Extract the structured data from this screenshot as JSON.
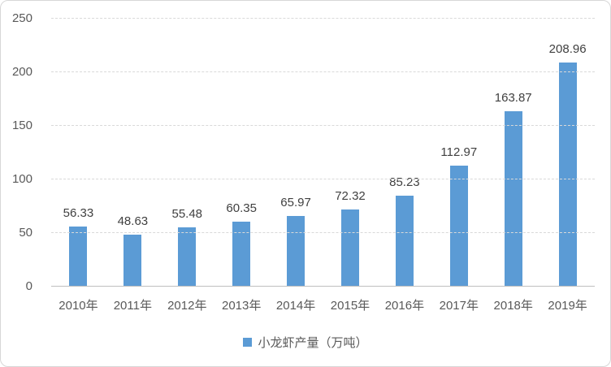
{
  "chart_data": {
    "type": "bar",
    "title": "",
    "categories": [
      "2010年",
      "2011年",
      "2012年",
      "2013年",
      "2014年",
      "2015年",
      "2016年",
      "2017年",
      "2018年",
      "2019年"
    ],
    "values": [
      56.33,
      48.63,
      55.48,
      60.35,
      65.97,
      72.32,
      85.23,
      112.97,
      163.87,
      208.96
    ],
    "value_labels": [
      "56.33",
      "48.63",
      "55.48",
      "60.35",
      "65.97",
      "72.32",
      "85.23",
      "112.97",
      "163.87",
      "208.96"
    ],
    "series_name": "小龙虾产量（万吨）",
    "xlabel": "",
    "ylabel": "",
    "y_ticks": [
      0,
      50,
      100,
      150,
      200,
      250
    ],
    "ylim": [
      0,
      250
    ],
    "grid": "horizontal-dashed",
    "legend_position": "bottom-center"
  },
  "legend": {
    "label": "小龙虾产量（万吨）"
  },
  "colors": {
    "bar": "#5b9bd5",
    "gridline": "#d9d9d9",
    "axis_line": "#bfbfbf",
    "axis_text": "#595959",
    "data_label_text": "#404040",
    "border": "#d7d7d7",
    "background": "#ffffff"
  }
}
